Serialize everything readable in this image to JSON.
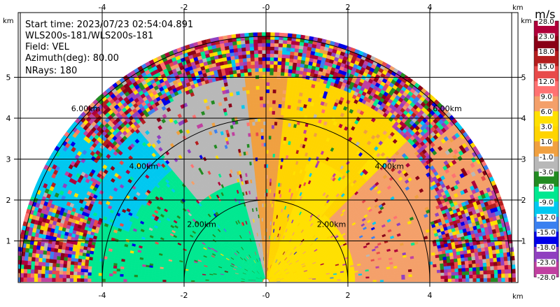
{
  "info": {
    "start_time": "Start time: 2023/07/23 02:54:04.891",
    "device": "WLS200s-181/WLS200s-181",
    "field": "Field: VEL",
    "azimuth": "Azimuth(deg): 80.00",
    "nrays": "NRays: 180"
  },
  "axis": {
    "unit": "km",
    "x_ticks": [
      "-4",
      "-2",
      "-0",
      "2",
      "4"
    ],
    "y_ticks": [
      "1",
      "2",
      "3",
      "4",
      "5"
    ]
  },
  "range_rings": [
    "2.00km",
    "4.00km",
    "6.00km"
  ],
  "colorbar": {
    "unit": "m/s",
    "labels": [
      "28.0",
      "23.0",
      "18.0",
      "15.0",
      "12.0",
      "9.0",
      "6.0",
      "3.0",
      "1.0",
      "-1.0",
      "-3.0",
      "-6.0",
      "-9.0",
      "-12.0",
      "-15.0",
      "-18.0",
      "-23.0",
      "-28.0"
    ],
    "colors": [
      "#b0003a",
      "#8a0016",
      "#b41e1e",
      "#e84a4a",
      "#ff7272",
      "#f4a06a",
      "#ffe000",
      "#ffd400",
      "#f0a040",
      "#b8b8b8",
      "#228b22",
      "#00e890",
      "#00c8f0",
      "#3a80f0",
      "#0000e8",
      "#9040c0",
      "#c040a0",
      "#800040"
    ]
  },
  "chart_data": {
    "type": "heatmap",
    "title": "",
    "field": "VEL",
    "azimuth_deg": 80.0,
    "nrays": 180,
    "xlabel": "km",
    "ylabel": "km",
    "xlim": [
      -6.1,
      6.1
    ],
    "ylim": [
      0,
      5.6
    ],
    "range_rings_km": [
      2,
      4,
      6
    ],
    "velocity_range_ms": [
      -28,
      28
    ],
    "sectors": [
      {
        "region": "north-west far (~5.5-6 km, bearing ~300)",
        "velocity_ms": -10
      },
      {
        "region": "west-north-west (1.5-6 km)",
        "velocity_ms": -6
      },
      {
        "region": "north-west near (0.5-3.5 km)",
        "velocity_ms": -2
      },
      {
        "region": "north near",
        "velocity_ms": 0
      },
      {
        "region": "north-east near (0.5-3.5 km)",
        "velocity_ms": 2
      },
      {
        "region": "east-north-east (1-5 km)",
        "velocity_ms": 5
      },
      {
        "region": "north-east far (~5-6 km, bearing ~60)",
        "velocity_ms": 6
      },
      {
        "region": "outer ring > 4 km",
        "velocity_ms": "noise"
      }
    ]
  }
}
